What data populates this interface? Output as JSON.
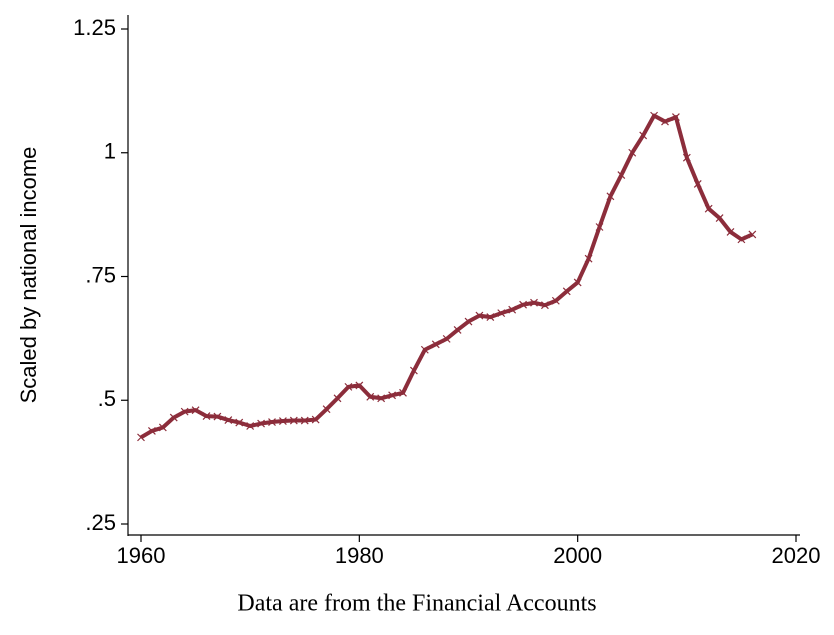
{
  "chart_data": {
    "type": "line",
    "y_label": "Scaled by national income",
    "note": "Data are from the Financial Accounts",
    "x": [
      1960,
      1961,
      1962,
      1963,
      1964,
      1965,
      1966,
      1967,
      1968,
      1969,
      1970,
      1971,
      1972,
      1973,
      1974,
      1975,
      1976,
      1977,
      1978,
      1979,
      1980,
      1981,
      1982,
      1983,
      1984,
      1985,
      1986,
      1987,
      1988,
      1989,
      1990,
      1991,
      1992,
      1993,
      1994,
      1995,
      1996,
      1997,
      1998,
      1999,
      2000,
      2001,
      2002,
      2003,
      2004,
      2005,
      2006,
      2007,
      2008,
      2009,
      2010,
      2011,
      2012,
      2013,
      2014,
      2015,
      2016
    ],
    "series": [
      {
        "color": "#8c2d3b",
        "values": [
          0.425,
          0.438,
          0.445,
          0.465,
          0.477,
          0.48,
          0.468,
          0.467,
          0.46,
          0.455,
          0.448,
          0.453,
          0.456,
          0.458,
          0.459,
          0.459,
          0.461,
          0.482,
          0.504,
          0.527,
          0.53,
          0.507,
          0.504,
          0.51,
          0.515,
          0.56,
          0.602,
          0.613,
          0.624,
          0.642,
          0.659,
          0.671,
          0.668,
          0.676,
          0.683,
          0.693,
          0.697,
          0.692,
          0.701,
          0.72,
          0.738,
          0.786,
          0.85,
          0.912,
          0.955,
          1.0,
          1.035,
          1.075,
          1.063,
          1.072,
          0.99,
          0.937,
          0.887,
          0.868,
          0.84,
          0.825,
          0.835
        ]
      }
    ],
    "xlim": [
      1960,
      2020
    ],
    "xticks": [
      1960,
      1980,
      2000,
      2020
    ],
    "ylim": [
      0.25,
      1.25
    ],
    "yticks": [
      {
        "value": 0.25,
        "label": ".25"
      },
      {
        "value": 0.5,
        "label": ".5"
      },
      {
        "value": 0.75,
        "label": ".75"
      },
      1,
      1.25
    ]
  }
}
